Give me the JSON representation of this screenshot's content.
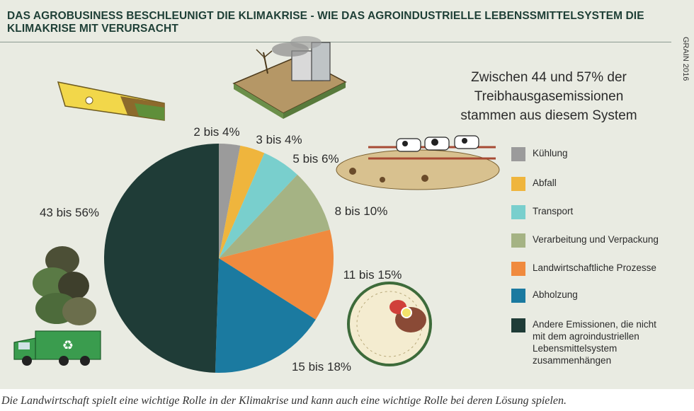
{
  "title": "DAS AGROBUSINESS  BESCHLEUNIGT DIE KLIMAKRISE - WIE DAS AGROINDUSTRIELLE LEBENSSMITTELSYSTEM DIE KLIMAKRISE MIT VERURSACHT",
  "source": "GRAIN 2016",
  "headline": [
    "Zwischen 44 und 57% der",
    "Treibhausgasemissionen",
    "stammen aus diesem System"
  ],
  "caption": "Die Landwirtschaft spielt eine wichtige Rolle in der Klimakrise und kann auch eine wichtige Rolle bei deren Lösung spielen.",
  "chart_data": {
    "type": "pie",
    "slices": [
      {
        "label": "2 bis 4%",
        "legend": "Kühlung",
        "value": 3,
        "color": "#9b9b9b"
      },
      {
        "label": "3 bis 4%",
        "legend": "Abfall",
        "value": 3.5,
        "color": "#efb53d"
      },
      {
        "label": "5 bis 6%",
        "legend": "Transport",
        "value": 5.5,
        "color": "#79cfcd"
      },
      {
        "label": "8 bis 10%",
        "legend": "Verarbeitung und Verpackung",
        "value": 9,
        "color": "#a5b384"
      },
      {
        "label": "11 bis 15%",
        "legend": "Landwirtschaftliche Prozesse",
        "value": 13,
        "color": "#f08a3e"
      },
      {
        "label": "15 bis 18%",
        "legend": "Abholzung",
        "value": 16.5,
        "color": "#1b7aa0"
      },
      {
        "label": "43 bis 56%",
        "legend": "Andere Emissionen, die nicht mit dem agroindustriellen Lebensmittelsystem zusammenhängen",
        "value": 49.5,
        "color": "#1f3c37"
      }
    ]
  }
}
